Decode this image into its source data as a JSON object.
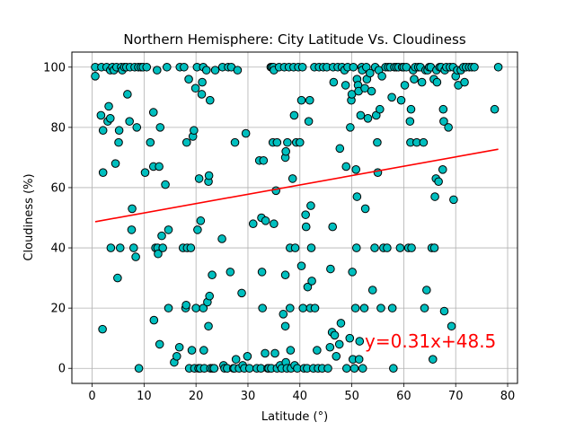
{
  "chart_data": {
    "type": "scatter",
    "title": "Northern Hemisphere: City Latitude Vs. Cloudiness",
    "xlabel": "Latitude (°)",
    "ylabel": "Cloudiness (%)",
    "xlim": [
      -3.9,
      81.9
    ],
    "ylim": [
      -5,
      105
    ],
    "xticks": [
      0,
      10,
      20,
      30,
      40,
      50,
      60,
      70,
      80
    ],
    "yticks": [
      0,
      20,
      40,
      60,
      80,
      100
    ],
    "grid": true,
    "marker_color": "#00bfbf",
    "marker_edge": "#000000",
    "regression": {
      "slope": 0.31,
      "intercept": 48.5,
      "x_range": [
        0.6,
        78.2
      ],
      "color": "#ff0000"
    },
    "annotation": {
      "text": "y=0.31x+48.5",
      "color": "#ff0000",
      "x": 52.5,
      "y": 9
    },
    "points": [
      [
        0.6,
        100
      ],
      [
        0.6,
        97
      ],
      [
        1.8,
        100
      ],
      [
        1.7,
        84
      ],
      [
        2.1,
        79
      ],
      [
        2.1,
        65
      ],
      [
        2.0,
        13
      ],
      [
        2.8,
        100
      ],
      [
        3.0,
        82
      ],
      [
        3.2,
        87
      ],
      [
        3.5,
        83
      ],
      [
        3.5,
        99
      ],
      [
        3.6,
        40
      ],
      [
        3.9,
        100
      ],
      [
        4.2,
        99
      ],
      [
        4.5,
        68
      ],
      [
        4.7,
        100
      ],
      [
        4.9,
        30
      ],
      [
        5.1,
        75
      ],
      [
        5.2,
        79
      ],
      [
        5.4,
        40
      ],
      [
        5.6,
        100
      ],
      [
        5.8,
        99
      ],
      [
        6.2,
        100
      ],
      [
        6.6,
        100
      ],
      [
        6.8,
        91
      ],
      [
        7.2,
        82
      ],
      [
        7.3,
        100
      ],
      [
        7.6,
        46
      ],
      [
        7.7,
        53
      ],
      [
        8.0,
        40
      ],
      [
        8.2,
        100
      ],
      [
        8.4,
        37
      ],
      [
        8.6,
        80
      ],
      [
        8.9,
        100
      ],
      [
        9.0,
        0
      ],
      [
        9.4,
        100
      ],
      [
        9.8,
        100
      ],
      [
        10.2,
        65
      ],
      [
        10.5,
        100
      ],
      [
        11.2,
        75
      ],
      [
        11.8,
        85
      ],
      [
        11.8,
        67
      ],
      [
        11.9,
        16
      ],
      [
        12.2,
        40
      ],
      [
        12.5,
        99
      ],
      [
        12.6,
        40
      ],
      [
        12.7,
        38
      ],
      [
        12.9,
        67
      ],
      [
        13.0,
        8
      ],
      [
        13.1,
        80
      ],
      [
        13.4,
        44
      ],
      [
        13.6,
        40
      ],
      [
        14.1,
        61
      ],
      [
        14.4,
        100
      ],
      [
        14.7,
        46
      ],
      [
        14.7,
        20
      ],
      [
        15.8,
        2
      ],
      [
        16.3,
        4
      ],
      [
        16.8,
        7
      ],
      [
        16.9,
        100
      ],
      [
        17.5,
        40
      ],
      [
        17.7,
        100
      ],
      [
        18.0,
        20
      ],
      [
        18.1,
        21
      ],
      [
        18.2,
        75
      ],
      [
        18.3,
        40
      ],
      [
        18.6,
        96
      ],
      [
        18.7,
        0
      ],
      [
        19.0,
        40
      ],
      [
        19.2,
        6
      ],
      [
        19.4,
        77
      ],
      [
        19.6,
        79
      ],
      [
        19.7,
        0
      ],
      [
        19.9,
        93
      ],
      [
        20.0,
        20
      ],
      [
        20.2,
        100
      ],
      [
        20.3,
        46
      ],
      [
        20.5,
        0
      ],
      [
        20.6,
        63
      ],
      [
        20.8,
        0
      ],
      [
        20.9,
        49
      ],
      [
        21.1,
        91
      ],
      [
        21.2,
        95
      ],
      [
        21.4,
        20
      ],
      [
        21.4,
        100
      ],
      [
        21.5,
        6
      ],
      [
        21.6,
        0
      ],
      [
        22.0,
        99
      ],
      [
        22.2,
        22
      ],
      [
        22.4,
        62
      ],
      [
        22.4,
        14
      ],
      [
        22.5,
        64
      ],
      [
        22.6,
        24
      ],
      [
        22.7,
        89
      ],
      [
        22.8,
        0
      ],
      [
        23.1,
        31
      ],
      [
        23.2,
        0
      ],
      [
        23.5,
        0
      ],
      [
        23.7,
        99
      ],
      [
        25.0,
        43
      ],
      [
        25.1,
        100
      ],
      [
        25.3,
        1
      ],
      [
        25.5,
        0
      ],
      [
        26.0,
        0
      ],
      [
        26.2,
        100
      ],
      [
        26.6,
        32
      ],
      [
        26.8,
        100
      ],
      [
        27.2,
        0
      ],
      [
        27.4,
        0
      ],
      [
        27.5,
        75
      ],
      [
        27.7,
        3
      ],
      [
        28.0,
        99
      ],
      [
        28.3,
        0
      ],
      [
        28.8,
        25
      ],
      [
        29.0,
        1
      ],
      [
        29.3,
        0
      ],
      [
        29.6,
        78
      ],
      [
        29.9,
        4
      ],
      [
        30.3,
        0
      ],
      [
        31.0,
        48
      ],
      [
        31.7,
        0
      ],
      [
        32.2,
        69
      ],
      [
        32.5,
        0
      ],
      [
        32.6,
        50
      ],
      [
        32.7,
        32
      ],
      [
        32.8,
        20
      ],
      [
        33.0,
        69
      ],
      [
        33.3,
        5
      ],
      [
        33.4,
        49
      ],
      [
        33.8,
        0
      ],
      [
        34.0,
        0
      ],
      [
        34.4,
        100
      ],
      [
        34.5,
        0
      ],
      [
        34.6,
        100
      ],
      [
        34.8,
        75
      ],
      [
        34.9,
        100
      ],
      [
        35.0,
        99
      ],
      [
        35.0,
        48
      ],
      [
        35.2,
        5
      ],
      [
        35.4,
        59
      ],
      [
        35.6,
        75
      ],
      [
        35.6,
        0
      ],
      [
        36.0,
        100
      ],
      [
        36.2,
        1
      ],
      [
        36.5,
        0
      ],
      [
        36.8,
        18
      ],
      [
        37.0,
        100
      ],
      [
        37.2,
        70
      ],
      [
        37.2,
        31
      ],
      [
        37.2,
        14
      ],
      [
        37.3,
        72
      ],
      [
        37.3,
        2
      ],
      [
        37.5,
        0
      ],
      [
        37.6,
        75
      ],
      [
        37.9,
        100
      ],
      [
        38.1,
        20
      ],
      [
        38.1,
        40
      ],
      [
        38.2,
        6
      ],
      [
        38.3,
        0
      ],
      [
        38.6,
        63
      ],
      [
        38.8,
        100
      ],
      [
        38.9,
        84
      ],
      [
        39.0,
        1
      ],
      [
        39.1,
        40
      ],
      [
        39.3,
        75
      ],
      [
        39.5,
        0
      ],
      [
        39.7,
        100
      ],
      [
        40.0,
        75
      ],
      [
        40.3,
        89
      ],
      [
        40.3,
        34
      ],
      [
        40.5,
        100
      ],
      [
        40.6,
        20
      ],
      [
        40.8,
        0
      ],
      [
        41.1,
        51
      ],
      [
        41.2,
        47
      ],
      [
        41.4,
        0
      ],
      [
        41.5,
        27
      ],
      [
        41.7,
        82
      ],
      [
        41.9,
        89
      ],
      [
        42.0,
        20
      ],
      [
        42.1,
        54
      ],
      [
        42.2,
        40
      ],
      [
        42.3,
        29
      ],
      [
        42.6,
        0
      ],
      [
        42.8,
        100
      ],
      [
        42.9,
        20
      ],
      [
        43.3,
        6
      ],
      [
        43.5,
        0
      ],
      [
        43.7,
        100
      ],
      [
        44.3,
        0
      ],
      [
        44.5,
        100
      ],
      [
        45.2,
        100
      ],
      [
        45.4,
        0
      ],
      [
        45.8,
        7
      ],
      [
        45.9,
        33
      ],
      [
        46.2,
        12
      ],
      [
        46.3,
        47
      ],
      [
        46.4,
        100
      ],
      [
        46.5,
        95
      ],
      [
        46.7,
        11
      ],
      [
        47.0,
        4
      ],
      [
        47.3,
        100
      ],
      [
        47.6,
        8
      ],
      [
        47.7,
        73
      ],
      [
        47.9,
        15
      ],
      [
        48.1,
        100
      ],
      [
        48.6,
        99
      ],
      [
        48.8,
        94
      ],
      [
        48.9,
        67
      ],
      [
        49.0,
        0
      ],
      [
        49.2,
        100
      ],
      [
        49.6,
        10
      ],
      [
        49.7,
        80
      ],
      [
        49.9,
        89
      ],
      [
        50.0,
        91
      ],
      [
        50.1,
        32
      ],
      [
        50.2,
        3
      ],
      [
        50.3,
        100
      ],
      [
        50.5,
        0
      ],
      [
        50.7,
        20
      ],
      [
        50.8,
        66
      ],
      [
        50.9,
        40
      ],
      [
        51.0,
        57
      ],
      [
        51.0,
        96
      ],
      [
        51.2,
        94
      ],
      [
        51.3,
        92
      ],
      [
        51.4,
        3
      ],
      [
        51.5,
        9
      ],
      [
        51.7,
        84
      ],
      [
        51.9,
        100
      ],
      [
        52.0,
        99
      ],
      [
        52.1,
        0
      ],
      [
        52.4,
        20
      ],
      [
        52.5,
        93
      ],
      [
        52.6,
        53
      ],
      [
        52.8,
        100
      ],
      [
        52.9,
        96
      ],
      [
        53.1,
        83
      ],
      [
        53.5,
        98
      ],
      [
        53.8,
        92
      ],
      [
        54.0,
        26
      ],
      [
        54.4,
        40
      ],
      [
        54.5,
        100
      ],
      [
        54.7,
        84
      ],
      [
        54.9,
        75
      ],
      [
        55.0,
        65
      ],
      [
        55.2,
        99
      ],
      [
        55.4,
        86
      ],
      [
        55.6,
        20
      ],
      [
        55.8,
        97
      ],
      [
        56.1,
        40
      ],
      [
        56.5,
        100
      ],
      [
        56.8,
        40
      ],
      [
        57.0,
        100
      ],
      [
        57.4,
        100
      ],
      [
        57.7,
        90
      ],
      [
        57.8,
        20
      ],
      [
        58.0,
        0
      ],
      [
        58.2,
        100
      ],
      [
        58.6,
        100
      ],
      [
        59.0,
        100
      ],
      [
        59.3,
        40
      ],
      [
        59.5,
        89
      ],
      [
        59.7,
        100
      ],
      [
        60.0,
        100
      ],
      [
        60.2,
        94
      ],
      [
        60.5,
        100
      ],
      [
        60.9,
        40
      ],
      [
        61.2,
        82
      ],
      [
        61.3,
        75
      ],
      [
        61.4,
        86
      ],
      [
        61.5,
        40
      ],
      [
        61.8,
        99
      ],
      [
        62.0,
        96
      ],
      [
        62.2,
        100
      ],
      [
        62.5,
        75
      ],
      [
        62.8,
        100
      ],
      [
        63.2,
        100
      ],
      [
        63.5,
        95
      ],
      [
        63.8,
        75
      ],
      [
        64.0,
        20
      ],
      [
        64.2,
        99
      ],
      [
        64.4,
        26
      ],
      [
        64.6,
        99
      ],
      [
        64.9,
        100
      ],
      [
        65.2,
        100
      ],
      [
        65.4,
        40
      ],
      [
        65.6,
        3
      ],
      [
        65.8,
        96
      ],
      [
        65.9,
        40
      ],
      [
        66.0,
        57
      ],
      [
        66.2,
        63
      ],
      [
        66.3,
        99
      ],
      [
        66.4,
        95
      ],
      [
        66.7,
        62
      ],
      [
        66.9,
        100
      ],
      [
        67.2,
        100
      ],
      [
        67.5,
        66
      ],
      [
        67.6,
        86
      ],
      [
        67.7,
        82
      ],
      [
        67.8,
        19
      ],
      [
        67.9,
        99
      ],
      [
        68.2,
        100
      ],
      [
        68.6,
        80
      ],
      [
        68.9,
        100
      ],
      [
        69.2,
        14
      ],
      [
        69.5,
        100
      ],
      [
        69.6,
        56
      ],
      [
        70.0,
        97
      ],
      [
        70.3,
        99
      ],
      [
        70.5,
        94
      ],
      [
        71.0,
        99
      ],
      [
        71.5,
        100
      ],
      [
        71.7,
        95
      ],
      [
        72.0,
        100
      ],
      [
        72.6,
        100
      ],
      [
        73.1,
        100
      ],
      [
        73.6,
        100
      ],
      [
        77.5,
        86
      ],
      [
        78.2,
        100
      ]
    ]
  }
}
